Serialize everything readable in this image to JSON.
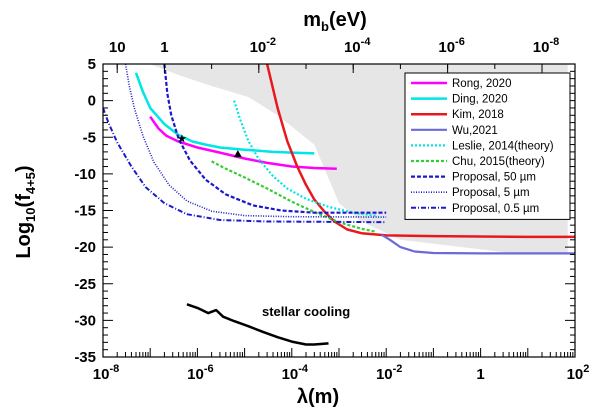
{
  "chart_data": {
    "type": "line",
    "xscale": "log",
    "xlim": [
      1e-08,
      100
    ],
    "ylim": [
      -35,
      5
    ],
    "xlabel": "λ(m)",
    "ylabel": "Log10(f4+5)",
    "ylabel_main": "Log",
    "ylabel_sub": "10",
    "ylabel_paren": "(f",
    "ylabel_sub2": "4+5",
    "ylabel_close": ")",
    "top_axis": {
      "label_main": "m",
      "label_sub": "b",
      "label_unit": "(eV)",
      "ticks": [
        {
          "lambda": 2e-08,
          "base": "10",
          "exp": ""
        },
        {
          "lambda": 2e-07,
          "base": "1",
          "exp": ""
        },
        {
          "lambda": 2e-05,
          "base": "10",
          "exp": "-2"
        },
        {
          "lambda": 0.002,
          "base": "10",
          "exp": "-4"
        },
        {
          "lambda": 0.2,
          "base": "10",
          "exp": "-6"
        },
        {
          "lambda": 20,
          "base": "10",
          "exp": "-8"
        }
      ]
    },
    "x_ticks": [
      {
        "value": 1e-08,
        "base": "10",
        "exp": "-8"
      },
      {
        "value": 1e-06,
        "base": "10",
        "exp": "-6"
      },
      {
        "value": 0.0001,
        "base": "10",
        "exp": "-4"
      },
      {
        "value": 0.01,
        "base": "10",
        "exp": "-2"
      },
      {
        "value": 1,
        "base": "1",
        "exp": ""
      },
      {
        "value": 100,
        "base": "10",
        "exp": "2"
      }
    ],
    "y_ticks": [
      5,
      0,
      -5,
      -10,
      -15,
      -20,
      -25,
      -30,
      -35
    ],
    "excluded_region": {
      "color": "#e6e6e6",
      "points": [
        [
          1e-07,
          5
        ],
        [
          70,
          5
        ],
        [
          70,
          -20.8
        ],
        [
          8,
          -21
        ],
        [
          0.02,
          -19
        ],
        [
          0.003,
          -16.5
        ],
        [
          0.001,
          -14
        ],
        [
          0.0003,
          -6
        ],
        [
          5e-05,
          -2
        ],
        [
          1.2e-05,
          0.5
        ],
        [
          2e-06,
          2
        ],
        [
          4e-07,
          3.5
        ],
        [
          1e-07,
          5
        ]
      ]
    },
    "series": [
      {
        "name": "Rong, 2020",
        "color": "#ff00ff",
        "dash": "solid",
        "width": 2.5,
        "points": [
          [
            1e-07,
            -2.2
          ],
          [
            1.5e-07,
            -3.8
          ],
          [
            2.2e-07,
            -4.8
          ],
          [
            4e-07,
            -5.6
          ],
          [
            1e-06,
            -6.4
          ],
          [
            3e-06,
            -7.1
          ],
          [
            1e-05,
            -7.9
          ],
          [
            3e-05,
            -8.5
          ],
          [
            0.0001,
            -9.0
          ],
          [
            0.0003,
            -9.2
          ],
          [
            0.0009,
            -9.3
          ]
        ]
      },
      {
        "name": "Ding, 2020",
        "color": "#00e5e5",
        "dash": "solid",
        "width": 2.5,
        "points": [
          [
            5e-08,
            3.8
          ],
          [
            7e-08,
            1.2
          ],
          [
            1e-07,
            -1.0
          ],
          [
            2e-07,
            -3.2
          ],
          [
            4e-07,
            -4.7
          ],
          [
            8e-07,
            -5.6
          ],
          [
            1.5e-06,
            -6.0
          ],
          [
            3e-06,
            -6.4
          ],
          [
            1e-05,
            -6.7
          ],
          [
            4e-05,
            -7.0
          ],
          [
            0.0001,
            -7.1
          ],
          [
            0.0003,
            -7.2
          ]
        ]
      },
      {
        "name": "Kim, 2018",
        "color": "#e8191e",
        "dash": "solid",
        "width": 2.5,
        "points": [
          [
            3e-05,
            5
          ],
          [
            5e-05,
            -1
          ],
          [
            8e-05,
            -5.5
          ],
          [
            0.00013,
            -9
          ],
          [
            0.0002,
            -11.5
          ],
          [
            0.0003,
            -13.5
          ],
          [
            0.0005,
            -15.2
          ],
          [
            0.0008,
            -16.5
          ],
          [
            0.0015,
            -17.6
          ],
          [
            0.003,
            -18.1
          ],
          [
            0.01,
            -18.4
          ],
          [
            0.1,
            -18.5
          ],
          [
            10,
            -18.6
          ],
          [
            100,
            -18.6
          ]
        ]
      },
      {
        "name": "Wu,2021",
        "color": "#6a6ad9",
        "dash": "solid",
        "width": 2.2,
        "points": [
          [
            0.008,
            -18.3
          ],
          [
            0.012,
            -19.0
          ],
          [
            0.02,
            -20.0
          ],
          [
            0.04,
            -20.6
          ],
          [
            0.1,
            -20.8
          ],
          [
            1,
            -20.85
          ],
          [
            10,
            -20.85
          ],
          [
            100,
            -20.85
          ]
        ]
      },
      {
        "name": "Leslie, 2014(theory)",
        "color": "#00e5e5",
        "dash": "2,2",
        "width": 2.2,
        "points": [
          [
            6e-06,
            0
          ],
          [
            8e-06,
            -2.5
          ],
          [
            1.2e-05,
            -5.5
          ],
          [
            2e-05,
            -8
          ],
          [
            4e-05,
            -10.3
          ],
          [
            8e-05,
            -12
          ],
          [
            0.0002,
            -13.4
          ],
          [
            0.0006,
            -14.5
          ],
          [
            0.002,
            -15.3
          ],
          [
            0.006,
            -15.7
          ]
        ]
      },
      {
        "name": "Chu, 2015(theory)",
        "color": "#33cc33",
        "dash": "3,2",
        "width": 2.2,
        "points": [
          [
            2e-06,
            -8.3
          ],
          [
            4e-06,
            -9.3
          ],
          [
            1e-05,
            -10.5
          ],
          [
            3e-05,
            -12
          ],
          [
            0.0001,
            -13.8
          ],
          [
            0.0003,
            -15.2
          ],
          [
            0.001,
            -16.6
          ],
          [
            0.003,
            -17.5
          ],
          [
            0.006,
            -17.9
          ]
        ]
      },
      {
        "name": "Proposal, 50 µm",
        "color": "#1a1acc",
        "dash": "4,2",
        "width": 2.2,
        "points": [
          [
            2e-07,
            5
          ],
          [
            2.3e-07,
            1
          ],
          [
            2.8e-07,
            -2
          ],
          [
            4e-07,
            -5.2
          ],
          [
            7e-07,
            -8.2
          ],
          [
            1.5e-06,
            -10.8
          ],
          [
            4e-06,
            -12.8
          ],
          [
            1.5e-05,
            -14.3
          ],
          [
            6e-05,
            -15.0
          ],
          [
            0.0003,
            -15.3
          ],
          [
            0.01,
            -15.3
          ]
        ]
      },
      {
        "name": "Proposal, 5 µm",
        "color": "#1a1acc",
        "dash": "1,1.5",
        "width": 1.6,
        "points": [
          [
            3e-08,
            5
          ],
          [
            3.6e-08,
            2
          ],
          [
            4.6e-08,
            -1
          ],
          [
            7e-08,
            -4.8
          ],
          [
            1.2e-07,
            -8.4
          ],
          [
            2.5e-07,
            -11.5
          ],
          [
            6e-07,
            -13.7
          ],
          [
            2e-06,
            -15.1
          ],
          [
            1e-05,
            -15.7
          ],
          [
            0.0001,
            -15.85
          ],
          [
            0.01,
            -15.9
          ]
        ]
      },
      {
        "name": "Proposal, 0.5 µm",
        "color": "#1a1acc",
        "dash": "5,2,1,2",
        "width": 2.0,
        "points": [
          [
            1e-08,
            -1.0
          ],
          [
            1.3e-08,
            -3.0
          ],
          [
            2e-08,
            -5.7
          ],
          [
            4e-08,
            -9.0
          ],
          [
            8e-08,
            -11.8
          ],
          [
            2e-07,
            -14.0
          ],
          [
            6e-07,
            -15.5
          ],
          [
            3e-06,
            -16.3
          ],
          [
            3e-05,
            -16.5
          ],
          [
            0.001,
            -16.55
          ],
          [
            0.01,
            -16.6
          ]
        ]
      }
    ],
    "stellar_cooling": {
      "color": "#000000",
      "points": [
        [
          6e-07,
          -27.8
        ],
        [
          1e-06,
          -28.3
        ],
        [
          1.7e-06,
          -29.0
        ],
        [
          2.5e-06,
          -28.6
        ],
        [
          3.5e-06,
          -29.5
        ],
        [
          6e-06,
          -30.1
        ],
        [
          1.2e-05,
          -30.8
        ],
        [
          2.5e-05,
          -31.6
        ],
        [
          5e-05,
          -32.3
        ],
        [
          0.0001,
          -32.9
        ],
        [
          0.0002,
          -33.3
        ],
        [
          0.0003,
          -33.3
        ],
        [
          0.0006,
          -33.15
        ]
      ]
    },
    "markers": [
      {
        "shape": "star",
        "x": 4.7e-07,
        "y": -5.2
      },
      {
        "shape": "triangle",
        "x": 7.2e-06,
        "y": -7.3
      }
    ],
    "annotations": {
      "stellar": "stellar cooling"
    },
    "legend": {
      "placement": "top-right"
    }
  }
}
